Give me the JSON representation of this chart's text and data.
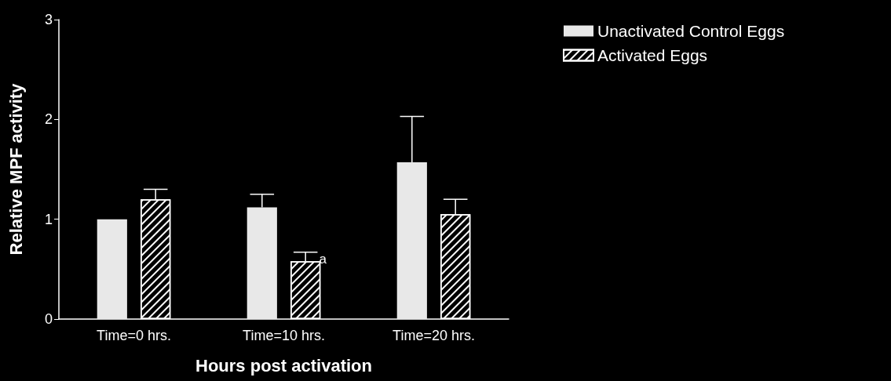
{
  "chart_data": {
    "type": "bar",
    "xlabel": "Hours post activation",
    "ylabel": "Relative MPF activity",
    "categories": [
      "Time=0 hrs.",
      "Time=10 hrs.",
      "Time=20 hrs."
    ],
    "series": [
      {
        "name": "Unactivated Control Eggs",
        "color": "#e8e8e8",
        "values": [
          1.0,
          1.12,
          1.57
        ],
        "errors": [
          null,
          [
            1.12,
            1.25
          ],
          [
            1.57,
            2.03
          ]
        ]
      },
      {
        "name": "Activated Eggs",
        "color": "#ffffff",
        "values": [
          1.2,
          0.58,
          1.05
        ],
        "errors": [
          [
            1.2,
            1.3
          ],
          [
            0.58,
            0.67
          ],
          [
            1.05,
            1.2
          ]
        ]
      }
    ],
    "ylim": [
      0,
      3
    ],
    "yticks": [
      0,
      1,
      2,
      3
    ],
    "grid": false,
    "legend": "top right",
    "annotations": [
      "a"
    ]
  }
}
